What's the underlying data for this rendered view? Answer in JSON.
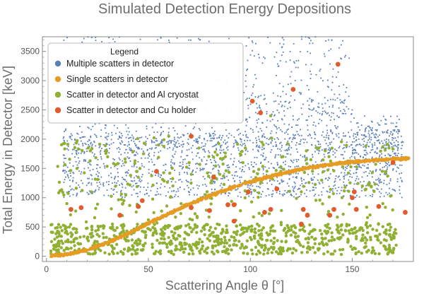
{
  "chart_data": {
    "type": "scatter",
    "title": "Simulated Detection Energy Depositions",
    "xlabel": "Scattering Angle θ [°]",
    "ylabel": "Total Energy in Detector [keV]",
    "xlim": [
      -2,
      180
    ],
    "ylim": [
      -90,
      3750
    ],
    "x_ticks": [
      0,
      50,
      100,
      150
    ],
    "y_ticks": [
      0,
      500,
      1000,
      1500,
      2000,
      2500,
      3000,
      3500
    ],
    "grid": false,
    "legend": {
      "title": "Legend",
      "position": "top-left"
    },
    "series": [
      {
        "name": "Multiple scatters in detector",
        "color": "#5a7fb8",
        "marker": "small-point",
        "description_values": {
          "x_range": [
            10,
            175
          ],
          "y_range": [
            0,
            3750
          ],
          "dense_band": "between ~1000 and ~2200 keV for 10°–170°, sparser up to 3750 keV"
        },
        "points": [
          [
            12,
            1450
          ],
          [
            15,
            2100
          ],
          [
            18,
            2600
          ],
          [
            22,
            1800
          ],
          [
            25,
            3000
          ],
          [
            28,
            1200
          ],
          [
            30,
            2400
          ],
          [
            33,
            3500
          ],
          [
            36,
            1650
          ],
          [
            40,
            2800
          ],
          [
            44,
            1900
          ],
          [
            48,
            3200
          ],
          [
            52,
            2200
          ],
          [
            55,
            1400
          ],
          [
            58,
            3600
          ],
          [
            62,
            2500
          ],
          [
            66,
            1700
          ],
          [
            70,
            3100
          ],
          [
            74,
            2000
          ],
          [
            78,
            2700
          ],
          [
            82,
            1550
          ],
          [
            86,
            3400
          ],
          [
            90,
            2300
          ],
          [
            94,
            1850
          ],
          [
            98,
            2900
          ],
          [
            102,
            1600
          ],
          [
            106,
            3300
          ],
          [
            110,
            2100
          ],
          [
            114,
            2600
          ],
          [
            118,
            1750
          ],
          [
            122,
            3000
          ],
          [
            126,
            2000
          ],
          [
            130,
            2400
          ],
          [
            134,
            1800
          ],
          [
            138,
            2900
          ],
          [
            142,
            2200
          ],
          [
            146,
            1900
          ],
          [
            150,
            2500
          ],
          [
            154,
            1700
          ],
          [
            158,
            2100
          ],
          [
            162,
            1650
          ],
          [
            166,
            1800
          ],
          [
            170,
            1600
          ],
          [
            174,
            1700
          ]
        ]
      },
      {
        "name": "Single scatters in detector",
        "color": "#e69c24",
        "marker": "point",
        "description_values": {
          "shape": "Compton curve",
          "x_range": [
            2,
            178
          ],
          "y_range": [
            0,
            1680
          ]
        },
        "curve": [
          [
            0,
            0
          ],
          [
            10,
            30
          ],
          [
            20,
            110
          ],
          [
            30,
            230
          ],
          [
            40,
            390
          ],
          [
            50,
            560
          ],
          [
            60,
            730
          ],
          [
            70,
            890
          ],
          [
            80,
            1030
          ],
          [
            90,
            1160
          ],
          [
            100,
            1270
          ],
          [
            110,
            1370
          ],
          [
            120,
            1450
          ],
          [
            130,
            1520
          ],
          [
            140,
            1570
          ],
          [
            150,
            1610
          ],
          [
            160,
            1640
          ],
          [
            170,
            1660
          ],
          [
            178,
            1670
          ]
        ]
      },
      {
        "name": "Scatter in detector and Al cryostat",
        "color": "#8fb032",
        "marker": "dot",
        "description_values": {
          "x_range": [
            2,
            172
          ],
          "y_range": [
            0,
            3600
          ],
          "dense_band": "0–500 keV across all angles, plus scattered points up to ~2000 keV"
        },
        "points": [
          [
            5,
            50
          ],
          [
            8,
            220
          ],
          [
            12,
            400
          ],
          [
            16,
            120
          ],
          [
            20,
            300
          ],
          [
            24,
            60
          ],
          [
            28,
            480
          ],
          [
            32,
            180
          ],
          [
            36,
            340
          ],
          [
            40,
            90
          ],
          [
            44,
            260
          ],
          [
            48,
            420
          ],
          [
            52,
            150
          ],
          [
            56,
            380
          ],
          [
            60,
            80
          ],
          [
            64,
            300
          ],
          [
            68,
            200
          ],
          [
            72,
            460
          ],
          [
            76,
            120
          ],
          [
            80,
            350
          ],
          [
            84,
            240
          ],
          [
            88,
            60
          ],
          [
            92,
            410
          ],
          [
            96,
            180
          ],
          [
            100,
            320
          ],
          [
            104,
            90
          ],
          [
            108,
            270
          ],
          [
            112,
            430
          ],
          [
            116,
            140
          ],
          [
            120,
            360
          ],
          [
            124,
            220
          ],
          [
            128,
            70
          ],
          [
            132,
            300
          ],
          [
            136,
            190
          ],
          [
            140,
            400
          ],
          [
            144,
            110
          ],
          [
            148,
            260
          ],
          [
            152,
            340
          ],
          [
            156,
            150
          ],
          [
            160,
            90
          ],
          [
            164,
            230
          ],
          [
            168,
            120
          ],
          [
            170,
            60
          ],
          [
            10,
            900
          ],
          [
            15,
            1500
          ],
          [
            22,
            1100
          ],
          [
            30,
            1700
          ],
          [
            38,
            950
          ],
          [
            45,
            1350
          ],
          [
            55,
            1900
          ],
          [
            62,
            1200
          ],
          [
            70,
            1600
          ],
          [
            78,
            1050
          ],
          [
            85,
            1400
          ],
          [
            95,
            1750
          ],
          [
            105,
            1250
          ],
          [
            115,
            1450
          ],
          [
            125,
            1100
          ],
          [
            135,
            1300
          ],
          [
            145,
            1000
          ],
          [
            155,
            1200
          ],
          [
            165,
            900
          ],
          [
            70,
            3600
          ],
          [
            95,
            2600
          ],
          [
            110,
            2400
          ],
          [
            60,
            2050
          ]
        ]
      },
      {
        "name": "Scatter in detector and Cu holder",
        "color": "#e35a2c",
        "marker": "large-dot",
        "points": [
          [
            12,
            800
          ],
          [
            17,
            830
          ],
          [
            36,
            700
          ],
          [
            45,
            850
          ],
          [
            47,
            950
          ],
          [
            54,
            1450
          ],
          [
            71,
            2050
          ],
          [
            71,
            830
          ],
          [
            82,
            1350
          ],
          [
            80,
            780
          ],
          [
            89,
            880
          ],
          [
            92,
            880
          ],
          [
            92,
            600
          ],
          [
            99,
            1100
          ],
          [
            101,
            2650
          ],
          [
            105,
            2450
          ],
          [
            107,
            750
          ],
          [
            110,
            800
          ],
          [
            113,
            1150
          ],
          [
            121,
            2850
          ],
          [
            125,
            550
          ],
          [
            126,
            800
          ],
          [
            128,
            700
          ],
          [
            139,
            700
          ],
          [
            141,
            800
          ],
          [
            143,
            3280
          ],
          [
            150,
            1000
          ],
          [
            151,
            1100
          ],
          [
            152,
            800
          ],
          [
            163,
            850
          ],
          [
            170,
            1600
          ],
          [
            176,
            750
          ]
        ]
      }
    ]
  }
}
